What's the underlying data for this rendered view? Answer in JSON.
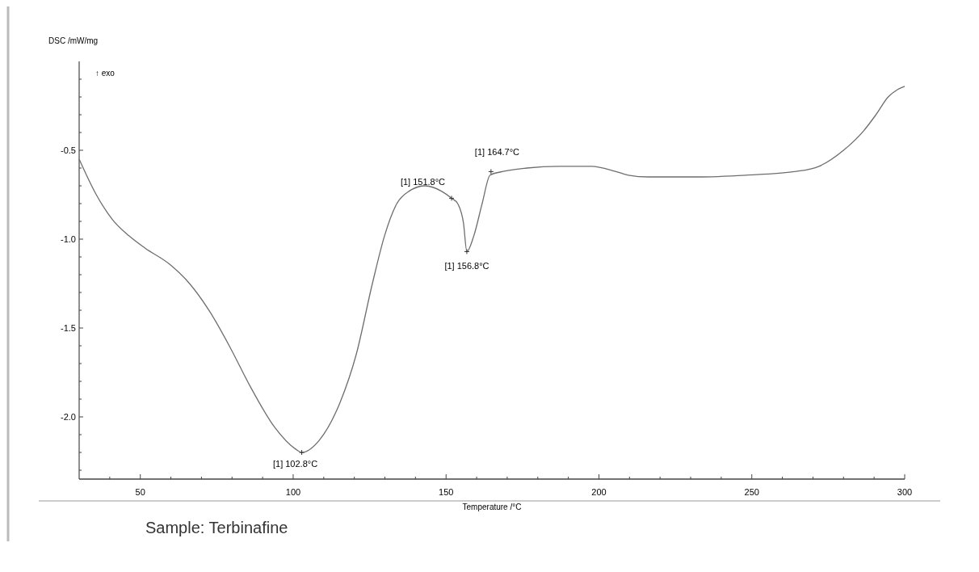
{
  "chart_data": {
    "type": "line",
    "xlabel": "Temperature /°C",
    "ylabel": "DSC /mW/mg",
    "xlim": [
      30,
      300
    ],
    "ylim": [
      -2.35,
      0
    ],
    "xticks": [
      {
        "value": 40,
        "label": null
      },
      50,
      {
        "value": 60,
        "label": null
      },
      {
        "value": 70,
        "label": null
      },
      {
        "value": 80,
        "label": null
      },
      {
        "value": 90,
        "label": null
      },
      100,
      {
        "value": 110,
        "label": null
      },
      {
        "value": 120,
        "label": null
      },
      {
        "value": 130,
        "label": null
      },
      {
        "value": 140,
        "label": null
      },
      150,
      {
        "value": 160,
        "label": null
      },
      {
        "value": 170,
        "label": null
      },
      {
        "value": 180,
        "label": null
      },
      {
        "value": 190,
        "label": null
      },
      200,
      {
        "value": 210,
        "label": null
      },
      {
        "value": 220,
        "label": null
      },
      {
        "value": 230,
        "label": null
      },
      {
        "value": 240,
        "label": null
      },
      250,
      {
        "value": 260,
        "label": null
      },
      {
        "value": 270,
        "label": null
      },
      {
        "value": 280,
        "label": null
      },
      {
        "value": 290,
        "label": null
      },
      300
    ],
    "yticks": [
      {
        "value": -2.3,
        "label": null
      },
      {
        "value": -2.2,
        "label": null
      },
      {
        "value": -2.1,
        "label": null
      },
      {
        "value": -2,
        "label": "-2.0"
      },
      {
        "value": -1.9,
        "label": null
      },
      {
        "value": -1.8,
        "label": null
      },
      {
        "value": -1.7,
        "label": null
      },
      {
        "value": -1.6,
        "label": null
      },
      -1.5,
      {
        "value": -1.4,
        "label": null
      },
      {
        "value": -1.3,
        "label": null
      },
      {
        "value": -1.2,
        "label": null
      },
      {
        "value": -1.1,
        "label": null
      },
      {
        "value": -1,
        "label": "-1.0"
      },
      {
        "value": -0.9,
        "label": null
      },
      {
        "value": -0.8,
        "label": null
      },
      {
        "value": -0.7,
        "label": null
      },
      {
        "value": -0.6,
        "label": null
      },
      -0.5,
      {
        "value": -0.4,
        "label": null
      },
      {
        "value": -0.3,
        "label": null
      },
      {
        "value": -0.2,
        "label": null
      },
      {
        "value": -0.1,
        "label": null
      }
    ],
    "grid": false,
    "marker": "none",
    "line_style": "solid",
    "series": [
      {
        "color": "#6e6e6e",
        "x": [
          30,
          35.6,
          40.9,
          46.2,
          51.5,
          59.5,
          66.1,
          72.8,
          79.4,
          86,
          94,
          100.7,
          102.8,
          108.6,
          115.3,
          120.6,
          125.9,
          129.9,
          133.9,
          137.9,
          143.2,
          148.5,
          151.8,
          153.8,
          155.7,
          156.8,
          159.1,
          161.8,
          164.4,
          168.4,
          176.4,
          187,
          197.6,
          205.6,
          209.6,
          216.2,
          232.2,
          248.1,
          264,
          272,
          280,
          286.6,
          290.6,
          294.6,
          297.5,
          300
        ],
        "values": [
          -0.55,
          -0.75,
          -0.89,
          -0.98,
          -1.05,
          -1.14,
          -1.25,
          -1.41,
          -1.61,
          -1.83,
          -2.06,
          -2.18,
          -2.2,
          -2.13,
          -1.92,
          -1.65,
          -1.25,
          -0.98,
          -0.8,
          -0.73,
          -0.7,
          -0.73,
          -0.77,
          -0.8,
          -0.91,
          -1.07,
          -0.98,
          -0.8,
          -0.64,
          -0.62,
          -0.6,
          -0.59,
          -0.59,
          -0.62,
          -0.64,
          -0.65,
          -0.65,
          -0.64,
          -0.62,
          -0.59,
          -0.5,
          -0.39,
          -0.3,
          -0.2,
          -0.16,
          -0.14
        ]
      }
    ],
    "annotations": [
      {
        "text": "[1] 102.8°C",
        "x": 102.8,
        "y": -2.2
      },
      {
        "text": "[1] 151.8°C",
        "x": 151.8,
        "y": -0.77
      },
      {
        "text": "[1] 156.8°C",
        "x": 156.8,
        "y": -1.07
      },
      {
        "text": "[1] 164.7°C",
        "x": 164.7,
        "y": -0.62
      },
      "↑ exo",
      "Sample: Terbinafine"
    ]
  }
}
